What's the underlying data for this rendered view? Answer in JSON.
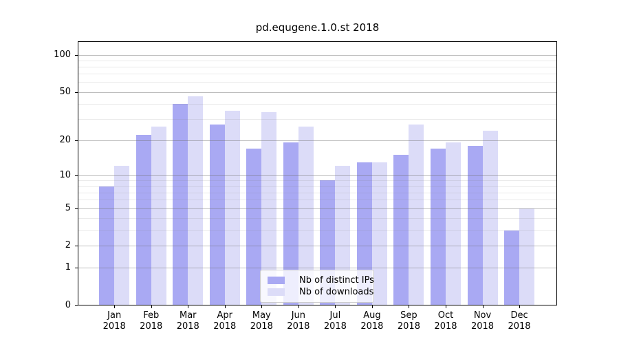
{
  "figure": {
    "background": "#ffffff"
  },
  "chart_data": {
    "type": "bar",
    "title": "pd.equgene.1.0.st 2018",
    "categories": [
      "Jan 2018",
      "Feb 2018",
      "Mar 2018",
      "Apr 2018",
      "May 2018",
      "Jun 2018",
      "Jul 2018",
      "Aug 2018",
      "Sep 2018",
      "Oct 2018",
      "Nov 2018",
      "Dec 2018"
    ],
    "x_tick_line1": [
      "Jan",
      "Feb",
      "Mar",
      "Apr",
      "May",
      "Jun",
      "Jul",
      "Aug",
      "Sep",
      "Oct",
      "Nov",
      "Dec"
    ],
    "x_tick_line2": [
      "2018",
      "2018",
      "2018",
      "2018",
      "2018",
      "2018",
      "2018",
      "2018",
      "2018",
      "2018",
      "2018",
      "2018"
    ],
    "series": [
      {
        "name": "Nb of distinct IPs",
        "color": "#a9a9f3",
        "values": [
          8,
          22,
          40,
          27,
          17,
          19,
          9,
          13,
          15,
          17,
          18,
          3
        ]
      },
      {
        "name": "Nb of downloads",
        "color": "#dcdcf8",
        "values": [
          12,
          26,
          46,
          35,
          34,
          26,
          12,
          13,
          27,
          19,
          24,
          5
        ]
      }
    ],
    "xlabel": "",
    "ylabel": "",
    "yscale": "log1p",
    "ylim": [
      0,
      130
    ],
    "y_major_ticks": [
      0,
      1,
      2,
      5,
      10,
      20,
      50,
      100
    ],
    "y_minor_gridlines": [
      3,
      4,
      6,
      7,
      8,
      9,
      30,
      40,
      60,
      70,
      80,
      90
    ],
    "grid": true,
    "legend_position": "lower center",
    "axis_color": "#000000",
    "major_grid_color": "#b3b3b3",
    "minor_grid_color": "#e7e7e7"
  }
}
